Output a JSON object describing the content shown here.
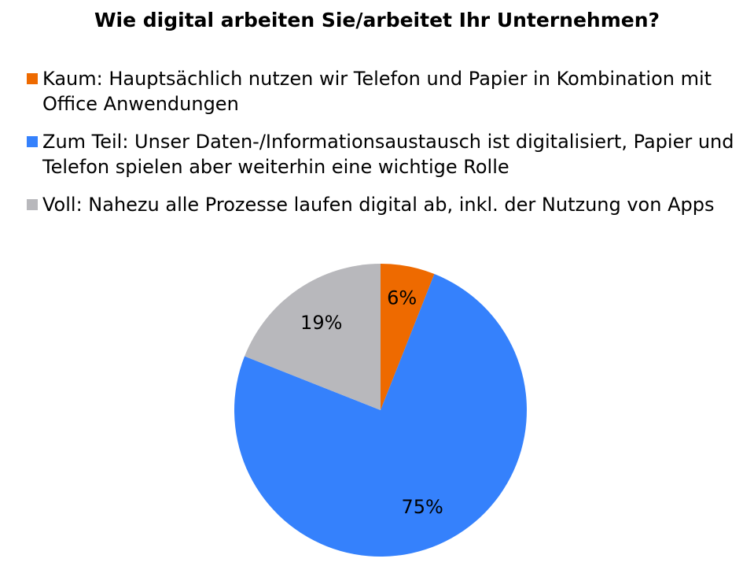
{
  "chart_data": {
    "type": "pie",
    "title": "Wie digital arbeiten Sie/arbeitet Ihr Unternehmen?",
    "categories": [
      "Kaum: Hauptsächlich nutzen wir Telefon und Papier in Kombination mit Office Anwendungen",
      "Zum Teil: Unser Daten-/Informationsaustausch ist digitalisiert, Papier und Telefon spielen aber weiterhin eine wichtige Rolle",
      "Voll: Nahezu alle Prozesse laufen digital ab, inkl. der Nutzung von Apps"
    ],
    "values": [
      6,
      75,
      19
    ],
    "data_labels": [
      "6%",
      "75%",
      "19%"
    ],
    "colors": [
      "#ee6a00",
      "#3581fc",
      "#b8b8bc"
    ],
    "legend_position": "top"
  }
}
